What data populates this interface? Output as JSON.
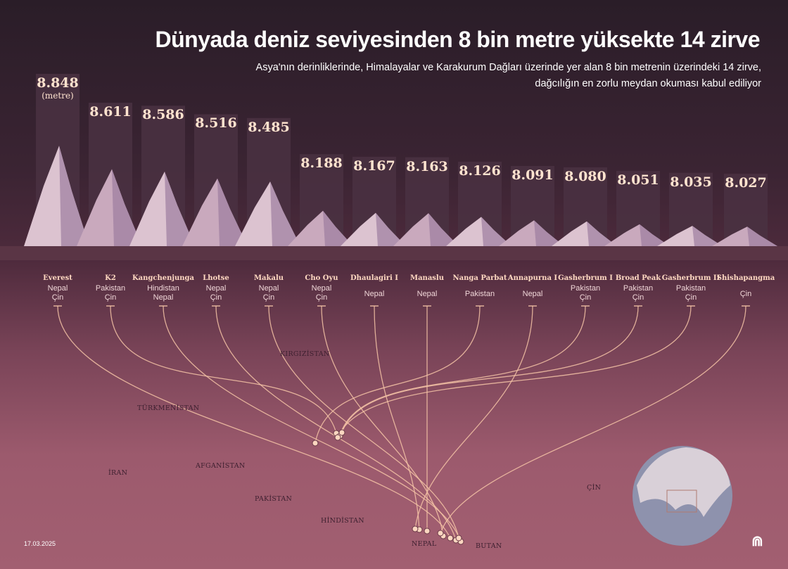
{
  "header": {
    "title": "Dünyada deniz seviyesinden 8 bin metre yüksekte 14 zirve",
    "subtitle_line1": "Asya'nın derinliklerinde, Himalayalar ve Karakurum Dağları üzerinde yer alan 8 bin metrenin üzerindeki 14 zirve,",
    "subtitle_line2": "dağcılığın en zorlu meydan okuması kabul ediliyor"
  },
  "chart_data": {
    "type": "bar",
    "unit_label": "(metre)",
    "categories": [
      "Everest",
      "K2",
      "Kangchenjunga",
      "Lhotse",
      "Makalu",
      "Cho Oyu",
      "Dhaulagiri I",
      "Manaslu",
      "Nanga Parbat",
      "Annapurna I",
      "Gasherbrum I",
      "Broad Peak",
      "Gasherbrum II",
      "Shishapangma"
    ],
    "values": [
      8848,
      8611,
      8586,
      8516,
      8485,
      8188,
      8167,
      8163,
      8126,
      8091,
      8080,
      8051,
      8035,
      8027
    ],
    "value_labels": [
      "8.848",
      "8.611",
      "8.586",
      "8.516",
      "8.485",
      "8.188",
      "8.167",
      "8.163",
      "8.126",
      "8.091",
      "8.080",
      "8.051",
      "8.035",
      "8.027"
    ],
    "countries": [
      [
        "Nepal",
        "Çin"
      ],
      [
        "Pakistan",
        "Çin"
      ],
      [
        "Hindistan",
        "Nepal"
      ],
      [
        "Nepal",
        "Çin"
      ],
      [
        "Nepal",
        "Çin"
      ],
      [
        "Nepal",
        "Çin"
      ],
      [
        "Nepal"
      ],
      [
        "Nepal"
      ],
      [
        "Pakistan"
      ],
      [
        "Nepal"
      ],
      [
        "Pakistan",
        "Çin"
      ],
      [
        "Pakistan",
        "Çin"
      ],
      [
        "Pakistan",
        "Çin"
      ],
      [
        "Çin"
      ]
    ]
  },
  "map": {
    "labels": [
      "KIRGIZİSTAN",
      "TÜRKMENİSTAN",
      "İRAN",
      "AFGANİSTAN",
      "PAKİSTAN",
      "HİNDİSTAN",
      "NEPAL",
      "BUTAN",
      "ÇİN"
    ]
  },
  "footer": {
    "date": "17.03.2025",
    "logo": "AA"
  },
  "colors": {
    "bar": "#4a3142",
    "label": "#ffe3cf",
    "arc": "#f4c3a6",
    "background_top": "#2a1d28",
    "background_bottom": "#a25f71"
  }
}
